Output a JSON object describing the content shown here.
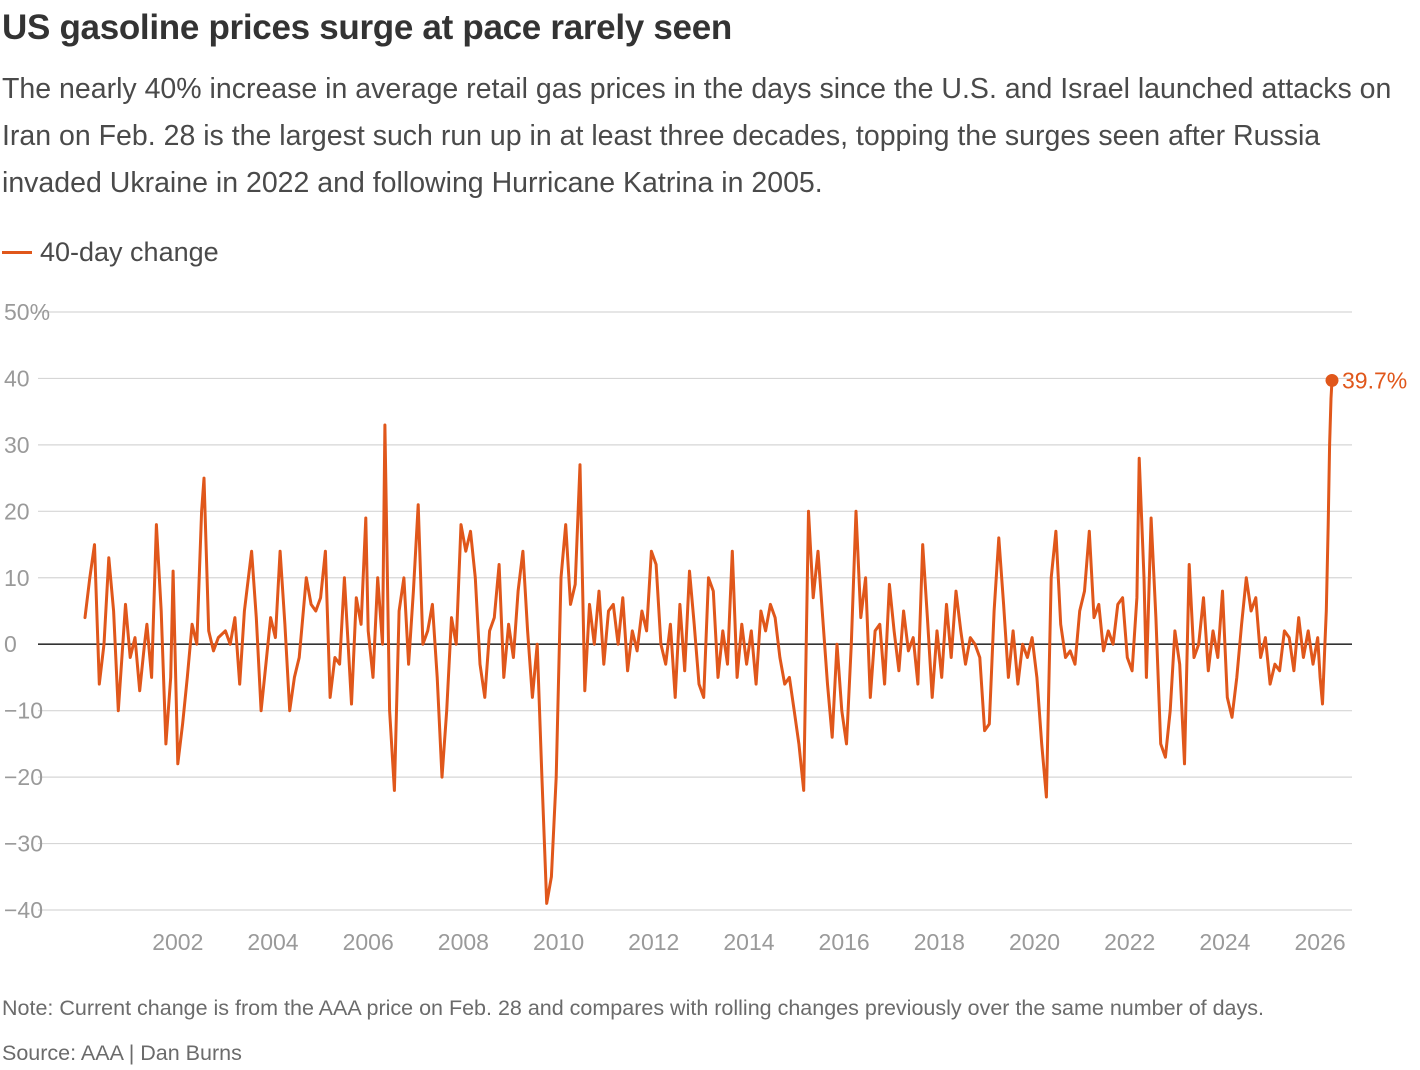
{
  "title": "US gasoline prices surge at pace rarely seen",
  "subtitle": "The nearly 40% increase in average retail gas prices in the days since the U.S. and Israel launched attacks on Iran on Feb. 28 is the largest such run up in at least three decades, topping the surges seen after Russia invaded Ukraine in 2022 and following Hurricane Katrina in 2005.",
  "legend_label": "40-day change",
  "note": "Note: Current change is from the AAA price on Feb. 28 and compares with rolling changes previously over the same number of days.",
  "source": "Source: AAA | Dan Burns",
  "chart_data": {
    "type": "line",
    "title": "US gasoline prices surge at pace rarely seen",
    "xlabel": "",
    "ylabel": "",
    "ylim": [
      -40,
      50
    ],
    "xlim": [
      2000.05,
      2026.25
    ],
    "grid": true,
    "legend": "top-left",
    "color": "#e0571b",
    "y_ticks": [
      50,
      40,
      30,
      20,
      10,
      0,
      -10,
      -20,
      -30,
      -40
    ],
    "y_tick_labels": [
      "50%",
      "40",
      "30",
      "20",
      "10",
      "0",
      "−10",
      "−20",
      "−30",
      "−40"
    ],
    "x_ticks": [
      2002,
      2004,
      2006,
      2008,
      2010,
      2012,
      2014,
      2016,
      2018,
      2020,
      2022,
      2024,
      2026
    ],
    "x_tick_labels": [
      "2002",
      "2004",
      "2006",
      "2008",
      "2010",
      "2012",
      "2014",
      "2016",
      "2018",
      "2020",
      "2022",
      "2024",
      "2026"
    ],
    "end_label": "39.7%",
    "series": [
      {
        "name": "40-day change",
        "points": [
          [
            2000.05,
            4
          ],
          [
            2000.15,
            10
          ],
          [
            2000.25,
            15
          ],
          [
            2000.35,
            -6
          ],
          [
            2000.45,
            0
          ],
          [
            2000.55,
            13
          ],
          [
            2000.65,
            5
          ],
          [
            2000.75,
            -10
          ],
          [
            2000.9,
            6
          ],
          [
            2001.0,
            -2
          ],
          [
            2001.1,
            1
          ],
          [
            2001.2,
            -7
          ],
          [
            2001.3,
            0
          ],
          [
            2001.35,
            3
          ],
          [
            2001.45,
            -5
          ],
          [
            2001.55,
            18
          ],
          [
            2001.65,
            5
          ],
          [
            2001.75,
            -15
          ],
          [
            2001.85,
            -5
          ],
          [
            2001.9,
            11
          ],
          [
            2002.0,
            -18
          ],
          [
            2002.1,
            -12
          ],
          [
            2002.2,
            -5
          ],
          [
            2002.3,
            3
          ],
          [
            2002.4,
            0
          ],
          [
            2002.5,
            20
          ],
          [
            2002.55,
            25
          ],
          [
            2002.65,
            2
          ],
          [
            2002.75,
            -1
          ],
          [
            2002.85,
            1
          ],
          [
            2003.0,
            2
          ],
          [
            2003.1,
            0
          ],
          [
            2003.2,
            4
          ],
          [
            2003.3,
            -6
          ],
          [
            2003.4,
            5
          ],
          [
            2003.55,
            14
          ],
          [
            2003.65,
            4
          ],
          [
            2003.75,
            -10
          ],
          [
            2003.85,
            -3
          ],
          [
            2003.95,
            4
          ],
          [
            2004.05,
            1
          ],
          [
            2004.15,
            14
          ],
          [
            2004.25,
            3
          ],
          [
            2004.35,
            -10
          ],
          [
            2004.45,
            -5
          ],
          [
            2004.55,
            -2
          ],
          [
            2004.7,
            10
          ],
          [
            2004.8,
            6
          ],
          [
            2004.9,
            5
          ],
          [
            2005.0,
            7
          ],
          [
            2005.1,
            14
          ],
          [
            2005.2,
            -8
          ],
          [
            2005.3,
            -2
          ],
          [
            2005.4,
            -3
          ],
          [
            2005.5,
            10
          ],
          [
            2005.65,
            -9
          ],
          [
            2005.75,
            7
          ],
          [
            2005.85,
            3
          ],
          [
            2005.95,
            19
          ],
          [
            2006.0,
            2
          ],
          [
            2006.1,
            -5
          ],
          [
            2006.2,
            10
          ],
          [
            2006.3,
            0
          ],
          [
            2006.35,
            33
          ],
          [
            2006.45,
            -10
          ],
          [
            2006.55,
            -22
          ],
          [
            2006.65,
            5
          ],
          [
            2006.75,
            10
          ],
          [
            2006.85,
            -3
          ],
          [
            2006.95,
            8
          ],
          [
            2007.05,
            21
          ],
          [
            2007.15,
            0
          ],
          [
            2007.25,
            2
          ],
          [
            2007.35,
            6
          ],
          [
            2007.45,
            -5
          ],
          [
            2007.55,
            -20
          ],
          [
            2007.65,
            -10
          ],
          [
            2007.75,
            4
          ],
          [
            2007.85,
            0
          ],
          [
            2007.95,
            18
          ],
          [
            2008.05,
            14
          ],
          [
            2008.15,
            17
          ],
          [
            2008.25,
            10
          ],
          [
            2008.35,
            -3
          ],
          [
            2008.45,
            -8
          ],
          [
            2008.55,
            2
          ],
          [
            2008.65,
            4
          ],
          [
            2008.75,
            12
          ],
          [
            2008.85,
            -5
          ],
          [
            2008.95,
            3
          ],
          [
            2009.05,
            -2
          ],
          [
            2009.15,
            8
          ],
          [
            2009.25,
            14
          ],
          [
            2009.35,
            2
          ],
          [
            2009.45,
            -8
          ],
          [
            2009.55,
            0
          ],
          [
            2009.65,
            -20
          ],
          [
            2009.75,
            -39
          ],
          [
            2009.85,
            -35
          ],
          [
            2009.95,
            -20
          ],
          [
            2010.05,
            10
          ],
          [
            2010.15,
            18
          ],
          [
            2010.25,
            6
          ],
          [
            2010.35,
            9
          ],
          [
            2010.45,
            27
          ],
          [
            2010.55,
            -7
          ],
          [
            2010.65,
            6
          ],
          [
            2010.75,
            0
          ],
          [
            2010.85,
            8
          ],
          [
            2010.95,
            -3
          ],
          [
            2011.05,
            5
          ],
          [
            2011.15,
            6
          ],
          [
            2011.25,
            0
          ],
          [
            2011.35,
            7
          ],
          [
            2011.45,
            -4
          ],
          [
            2011.55,
            2
          ],
          [
            2011.65,
            -1
          ],
          [
            2011.75,
            5
          ],
          [
            2011.85,
            2
          ],
          [
            2011.95,
            14
          ],
          [
            2012.05,
            12
          ],
          [
            2012.15,
            0
          ],
          [
            2012.25,
            -3
          ],
          [
            2012.35,
            3
          ],
          [
            2012.45,
            -8
          ],
          [
            2012.55,
            6
          ],
          [
            2012.65,
            -4
          ],
          [
            2012.75,
            11
          ],
          [
            2012.85,
            3
          ],
          [
            2012.95,
            -6
          ],
          [
            2013.05,
            -8
          ],
          [
            2013.15,
            10
          ],
          [
            2013.25,
            8
          ],
          [
            2013.35,
            -5
          ],
          [
            2013.45,
            2
          ],
          [
            2013.55,
            -3
          ],
          [
            2013.65,
            14
          ],
          [
            2013.75,
            -5
          ],
          [
            2013.85,
            3
          ],
          [
            2013.95,
            -3
          ],
          [
            2014.05,
            2
          ],
          [
            2014.15,
            -6
          ],
          [
            2014.25,
            5
          ],
          [
            2014.35,
            2
          ],
          [
            2014.45,
            6
          ],
          [
            2014.55,
            4
          ],
          [
            2014.65,
            -2
          ],
          [
            2014.75,
            -6
          ],
          [
            2014.85,
            -5
          ],
          [
            2014.95,
            -10
          ],
          [
            2015.05,
            -15
          ],
          [
            2015.15,
            -22
          ],
          [
            2015.25,
            20
          ],
          [
            2015.35,
            7
          ],
          [
            2015.45,
            14
          ],
          [
            2015.55,
            4
          ],
          [
            2015.65,
            -6
          ],
          [
            2015.75,
            -14
          ],
          [
            2015.85,
            0
          ],
          [
            2015.95,
            -10
          ],
          [
            2016.05,
            -15
          ],
          [
            2016.15,
            0
          ],
          [
            2016.25,
            20
          ],
          [
            2016.35,
            4
          ],
          [
            2016.45,
            10
          ],
          [
            2016.55,
            -8
          ],
          [
            2016.65,
            2
          ],
          [
            2016.75,
            3
          ],
          [
            2016.85,
            -6
          ],
          [
            2016.95,
            9
          ],
          [
            2017.05,
            2
          ],
          [
            2017.15,
            -4
          ],
          [
            2017.25,
            5
          ],
          [
            2017.35,
            -1
          ],
          [
            2017.45,
            1
          ],
          [
            2017.55,
            -6
          ],
          [
            2017.65,
            15
          ],
          [
            2017.75,
            4
          ],
          [
            2017.85,
            -8
          ],
          [
            2017.95,
            2
          ],
          [
            2018.05,
            -5
          ],
          [
            2018.15,
            6
          ],
          [
            2018.25,
            -2
          ],
          [
            2018.35,
            8
          ],
          [
            2018.45,
            2
          ],
          [
            2018.55,
            -3
          ],
          [
            2018.65,
            1
          ],
          [
            2018.75,
            0
          ],
          [
            2018.85,
            -2
          ],
          [
            2018.95,
            -13
          ],
          [
            2019.05,
            -12
          ],
          [
            2019.15,
            5
          ],
          [
            2019.25,
            16
          ],
          [
            2019.35,
            6
          ],
          [
            2019.45,
            -5
          ],
          [
            2019.55,
            2
          ],
          [
            2019.65,
            -6
          ],
          [
            2019.75,
            0
          ],
          [
            2019.85,
            -2
          ],
          [
            2019.95,
            1
          ],
          [
            2020.05,
            -5
          ],
          [
            2020.15,
            -15
          ],
          [
            2020.25,
            -23
          ],
          [
            2020.35,
            10
          ],
          [
            2020.45,
            17
          ],
          [
            2020.55,
            3
          ],
          [
            2020.65,
            -2
          ],
          [
            2020.75,
            -1
          ],
          [
            2020.85,
            -3
          ],
          [
            2020.95,
            5
          ],
          [
            2021.05,
            8
          ],
          [
            2021.15,
            17
          ],
          [
            2021.25,
            4
          ],
          [
            2021.35,
            6
          ],
          [
            2021.45,
            -1
          ],
          [
            2021.55,
            2
          ],
          [
            2021.65,
            0
          ],
          [
            2021.75,
            6
          ],
          [
            2021.85,
            7
          ],
          [
            2021.95,
            -2
          ],
          [
            2022.05,
            -4
          ],
          [
            2022.15,
            7
          ],
          [
            2022.2,
            28
          ],
          [
            2022.3,
            10
          ],
          [
            2022.35,
            -5
          ],
          [
            2022.45,
            19
          ],
          [
            2022.55,
            4
          ],
          [
            2022.65,
            -15
          ],
          [
            2022.75,
            -17
          ],
          [
            2022.85,
            -10
          ],
          [
            2022.95,
            2
          ],
          [
            2023.05,
            -3
          ],
          [
            2023.15,
            -18
          ],
          [
            2023.25,
            12
          ],
          [
            2023.35,
            -2
          ],
          [
            2023.45,
            0
          ],
          [
            2023.55,
            7
          ],
          [
            2023.65,
            -4
          ],
          [
            2023.75,
            2
          ],
          [
            2023.85,
            -2
          ],
          [
            2023.95,
            8
          ],
          [
            2024.05,
            -8
          ],
          [
            2024.15,
            -11
          ],
          [
            2024.25,
            -5
          ],
          [
            2024.35,
            3
          ],
          [
            2024.45,
            10
          ],
          [
            2024.55,
            5
          ],
          [
            2024.65,
            7
          ],
          [
            2024.75,
            -2
          ],
          [
            2024.85,
            1
          ],
          [
            2024.95,
            -6
          ],
          [
            2025.05,
            -3
          ],
          [
            2025.15,
            -4
          ],
          [
            2025.25,
            2
          ],
          [
            2025.35,
            1
          ],
          [
            2025.45,
            -4
          ],
          [
            2025.55,
            4
          ],
          [
            2025.65,
            -2
          ],
          [
            2025.75,
            2
          ],
          [
            2025.85,
            -3
          ],
          [
            2025.95,
            1
          ],
          [
            2026.0,
            -5
          ],
          [
            2026.05,
            -9
          ],
          [
            2026.1,
            0
          ],
          [
            2026.13,
            5
          ],
          [
            2026.17,
            18
          ],
          [
            2026.2,
            30
          ],
          [
            2026.23,
            37
          ],
          [
            2026.25,
            39.7
          ]
        ]
      }
    ]
  }
}
